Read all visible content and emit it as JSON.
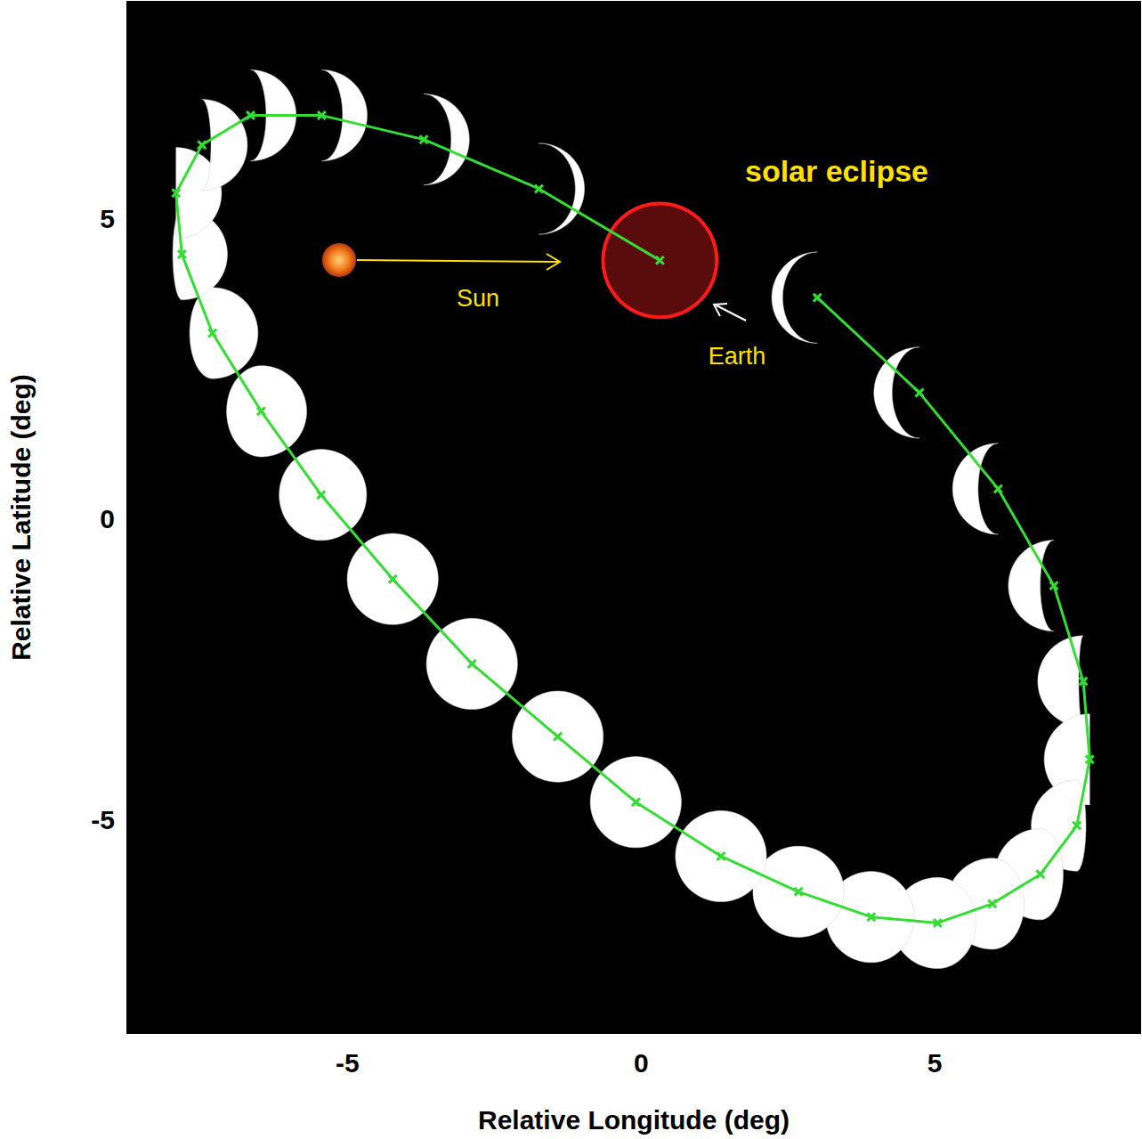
{
  "chart_data": {
    "type": "line",
    "x_label": "Relative Longitude (deg)",
    "y_label": "Relative Latitude (deg)",
    "xlim": [
      -8.75,
      8.5
    ],
    "ylim": [
      -8.55,
      8.6
    ],
    "xticks": [
      -5,
      0,
      5
    ],
    "yticks": [
      -5,
      0,
      5
    ],
    "grid": false,
    "color": "#33dd33",
    "marker": "x",
    "x": [
      3.0,
      4.74,
      6.08,
      7.03,
      7.53,
      7.64,
      7.42,
      6.8,
      5.98,
      5.05,
      3.92,
      2.68,
      1.36,
      -0.09,
      -1.42,
      -2.88,
      -4.23,
      -5.45,
      -6.47,
      -7.3,
      -7.82,
      -7.92,
      -7.48,
      -6.65,
      -5.44,
      -3.7,
      -1.74,
      0.32
    ],
    "values": [
      3.68,
      2.1,
      0.5,
      -1.11,
      -2.7,
      -4.0,
      -5.1,
      -5.91,
      -6.4,
      -6.72,
      -6.62,
      -6.2,
      -5.61,
      -4.71,
      -3.62,
      -2.41,
      -1.0,
      0.4,
      1.79,
      3.09,
      4.4,
      5.42,
      6.22,
      6.71,
      6.71,
      6.31,
      5.49,
      4.3
    ],
    "illumination": [
      0.12,
      0.2,
      0.28,
      0.35,
      0.45,
      0.5,
      0.6,
      0.75,
      0.85,
      0.92,
      0.97,
      1,
      1,
      1,
      1,
      1,
      1,
      0.96,
      0.88,
      0.75,
      0.6,
      0.5,
      0.4,
      0.33,
      0.27,
      0.2,
      0.1,
      0
    ],
    "earth_diameter_deg": 1.55,
    "annotations": {
      "eclipse": "solar eclipse",
      "sun": "Sun",
      "earth": "Earth"
    }
  }
}
